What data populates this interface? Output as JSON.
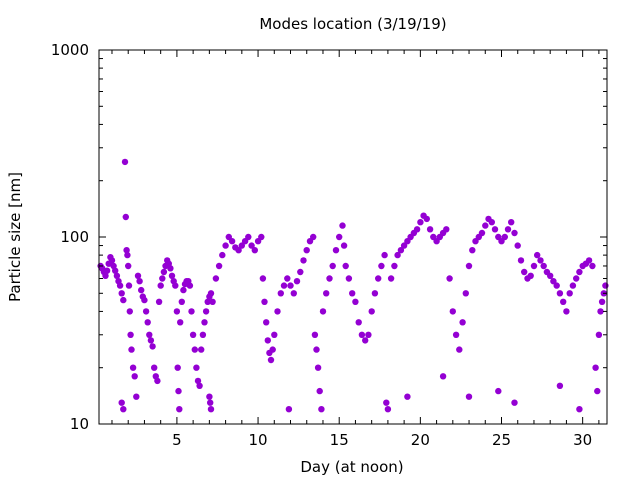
{
  "chart_data": {
    "type": "scatter",
    "title": "Modes location (3/19/19)",
    "xlabel": "Day (at noon)",
    "ylabel": "Particle size [nm]",
    "x_scale": "linear",
    "y_scale": "log",
    "xlim": [
      0.2,
      31.5
    ],
    "ylim": [
      10,
      1000
    ],
    "grid": false,
    "x_ticks": [
      5,
      10,
      15,
      20,
      25,
      30
    ],
    "x_tick_labels": [
      "5",
      "10",
      "15",
      "20",
      "25",
      "30"
    ],
    "y_ticks": [
      10,
      100,
      1000
    ],
    "y_tick_labels": [
      "10",
      "100",
      "1000"
    ],
    "marker_color": "#9400d3",
    "series": [
      {
        "name": "",
        "points": [
          [
            0.3,
            70
          ],
          [
            0.4,
            68
          ],
          [
            0.5,
            65
          ],
          [
            0.6,
            62
          ],
          [
            0.7,
            66
          ],
          [
            0.8,
            72
          ],
          [
            0.9,
            78
          ],
          [
            1.0,
            75
          ],
          [
            1.1,
            70
          ],
          [
            1.2,
            66
          ],
          [
            1.3,
            62
          ],
          [
            1.4,
            58
          ],
          [
            1.5,
            55
          ],
          [
            1.6,
            50
          ],
          [
            1.7,
            46
          ],
          [
            1.8,
            252
          ],
          [
            1.85,
            128
          ],
          [
            1.9,
            85
          ],
          [
            1.95,
            80
          ],
          [
            2.0,
            70
          ],
          [
            2.05,
            55
          ],
          [
            2.1,
            40
          ],
          [
            2.15,
            30
          ],
          [
            2.2,
            25
          ],
          [
            2.3,
            20
          ],
          [
            2.4,
            18
          ],
          [
            2.5,
            14
          ],
          [
            1.6,
            13
          ],
          [
            1.7,
            12
          ],
          [
            2.6,
            62
          ],
          [
            2.7,
            58
          ],
          [
            2.8,
            52
          ],
          [
            2.9,
            48
          ],
          [
            3.0,
            46
          ],
          [
            3.1,
            40
          ],
          [
            3.2,
            35
          ],
          [
            3.3,
            30
          ],
          [
            3.4,
            28
          ],
          [
            3.5,
            26
          ],
          [
            3.6,
            20
          ],
          [
            3.7,
            18
          ],
          [
            3.8,
            17
          ],
          [
            3.9,
            45
          ],
          [
            4.0,
            55
          ],
          [
            4.1,
            60
          ],
          [
            4.2,
            65
          ],
          [
            4.3,
            70
          ],
          [
            4.4,
            75
          ],
          [
            4.5,
            72
          ],
          [
            4.6,
            68
          ],
          [
            4.7,
            62
          ],
          [
            4.8,
            58
          ],
          [
            4.9,
            55
          ],
          [
            5.0,
            40
          ],
          [
            5.05,
            20
          ],
          [
            5.1,
            15
          ],
          [
            5.15,
            12
          ],
          [
            5.2,
            35
          ],
          [
            5.3,
            45
          ],
          [
            5.4,
            52
          ],
          [
            5.5,
            56
          ],
          [
            5.6,
            58
          ],
          [
            5.7,
            58
          ],
          [
            5.8,
            55
          ],
          [
            5.9,
            40
          ],
          [
            6.0,
            30
          ],
          [
            6.1,
            25
          ],
          [
            6.2,
            20
          ],
          [
            6.3,
            17
          ],
          [
            6.4,
            16
          ],
          [
            6.5,
            25
          ],
          [
            6.6,
            30
          ],
          [
            6.7,
            35
          ],
          [
            6.8,
            40
          ],
          [
            6.9,
            45
          ],
          [
            7.0,
            48
          ],
          [
            7.1,
            50
          ],
          [
            7.2,
            45
          ],
          [
            7.0,
            14
          ],
          [
            7.05,
            13
          ],
          [
            7.1,
            12
          ],
          [
            7.4,
            60
          ],
          [
            7.6,
            70
          ],
          [
            7.8,
            80
          ],
          [
            8.0,
            90
          ],
          [
            8.2,
            100
          ],
          [
            8.4,
            95
          ],
          [
            8.6,
            88
          ],
          [
            8.8,
            85
          ],
          [
            9.0,
            90
          ],
          [
            9.2,
            95
          ],
          [
            9.4,
            100
          ],
          [
            9.6,
            90
          ],
          [
            9.8,
            85
          ],
          [
            10.0,
            95
          ],
          [
            10.2,
            100
          ],
          [
            10.3,
            60
          ],
          [
            10.4,
            45
          ],
          [
            10.5,
            35
          ],
          [
            10.6,
            28
          ],
          [
            10.7,
            24
          ],
          [
            10.8,
            22
          ],
          [
            10.9,
            25
          ],
          [
            11.0,
            30
          ],
          [
            11.2,
            40
          ],
          [
            11.4,
            50
          ],
          [
            11.6,
            55
          ],
          [
            11.8,
            60
          ],
          [
            11.9,
            12
          ],
          [
            12.0,
            55
          ],
          [
            12.2,
            50
          ],
          [
            12.4,
            58
          ],
          [
            12.6,
            65
          ],
          [
            12.8,
            75
          ],
          [
            13.0,
            85
          ],
          [
            13.2,
            95
          ],
          [
            13.4,
            100
          ],
          [
            13.5,
            30
          ],
          [
            13.6,
            25
          ],
          [
            13.7,
            20
          ],
          [
            13.8,
            15
          ],
          [
            13.9,
            12
          ],
          [
            14.0,
            40
          ],
          [
            14.2,
            50
          ],
          [
            14.4,
            60
          ],
          [
            14.6,
            70
          ],
          [
            14.8,
            85
          ],
          [
            15.0,
            100
          ],
          [
            15.2,
            115
          ],
          [
            15.3,
            90
          ],
          [
            15.4,
            70
          ],
          [
            15.6,
            60
          ],
          [
            15.8,
            50
          ],
          [
            16.0,
            45
          ],
          [
            16.2,
            35
          ],
          [
            16.4,
            30
          ],
          [
            16.6,
            28
          ],
          [
            16.8,
            30
          ],
          [
            17.0,
            40
          ],
          [
            17.2,
            50
          ],
          [
            17.4,
            60
          ],
          [
            17.6,
            70
          ],
          [
            17.8,
            80
          ],
          [
            17.9,
            13
          ],
          [
            18.0,
            12
          ],
          [
            18.2,
            60
          ],
          [
            18.4,
            70
          ],
          [
            18.6,
            80
          ],
          [
            18.8,
            85
          ],
          [
            19.0,
            90
          ],
          [
            19.2,
            95
          ],
          [
            19.4,
            100
          ],
          [
            19.6,
            105
          ],
          [
            19.8,
            110
          ],
          [
            20.0,
            120
          ],
          [
            20.2,
            130
          ],
          [
            20.4,
            125
          ],
          [
            20.6,
            110
          ],
          [
            20.8,
            100
          ],
          [
            21.0,
            95
          ],
          [
            21.2,
            100
          ],
          [
            21.4,
            105
          ],
          [
            21.6,
            110
          ],
          [
            21.8,
            60
          ],
          [
            22.0,
            40
          ],
          [
            22.2,
            30
          ],
          [
            22.4,
            25
          ],
          [
            22.6,
            35
          ],
          [
            22.8,
            50
          ],
          [
            23.0,
            70
          ],
          [
            23.2,
            85
          ],
          [
            23.4,
            95
          ],
          [
            23.6,
            100
          ],
          [
            23.8,
            105
          ],
          [
            24.0,
            115
          ],
          [
            24.2,
            125
          ],
          [
            24.4,
            120
          ],
          [
            24.6,
            110
          ],
          [
            24.8,
            100
          ],
          [
            25.0,
            95
          ],
          [
            25.2,
            100
          ],
          [
            25.4,
            110
          ],
          [
            25.6,
            120
          ],
          [
            25.8,
            105
          ],
          [
            26.0,
            90
          ],
          [
            26.2,
            75
          ],
          [
            26.4,
            65
          ],
          [
            26.6,
            60
          ],
          [
            26.8,
            62
          ],
          [
            27.0,
            70
          ],
          [
            27.2,
            80
          ],
          [
            27.4,
            75
          ],
          [
            27.6,
            70
          ],
          [
            27.8,
            65
          ],
          [
            28.0,
            62
          ],
          [
            28.2,
            58
          ],
          [
            28.4,
            55
          ],
          [
            28.6,
            50
          ],
          [
            28.8,
            45
          ],
          [
            29.0,
            40
          ],
          [
            29.2,
            50
          ],
          [
            29.4,
            55
          ],
          [
            29.6,
            60
          ],
          [
            29.8,
            65
          ],
          [
            30.0,
            70
          ],
          [
            30.2,
            72
          ],
          [
            30.4,
            75
          ],
          [
            30.6,
            70
          ],
          [
            30.8,
            20
          ],
          [
            30.9,
            15
          ],
          [
            31.0,
            30
          ],
          [
            31.1,
            40
          ],
          [
            31.2,
            45
          ],
          [
            31.3,
            50
          ],
          [
            31.4,
            55
          ],
          [
            24.8,
            15
          ],
          [
            25.8,
            13
          ],
          [
            21.4,
            18
          ],
          [
            19.2,
            14
          ],
          [
            23.0,
            14
          ],
          [
            29.8,
            12
          ],
          [
            28.6,
            16
          ]
        ]
      }
    ]
  }
}
